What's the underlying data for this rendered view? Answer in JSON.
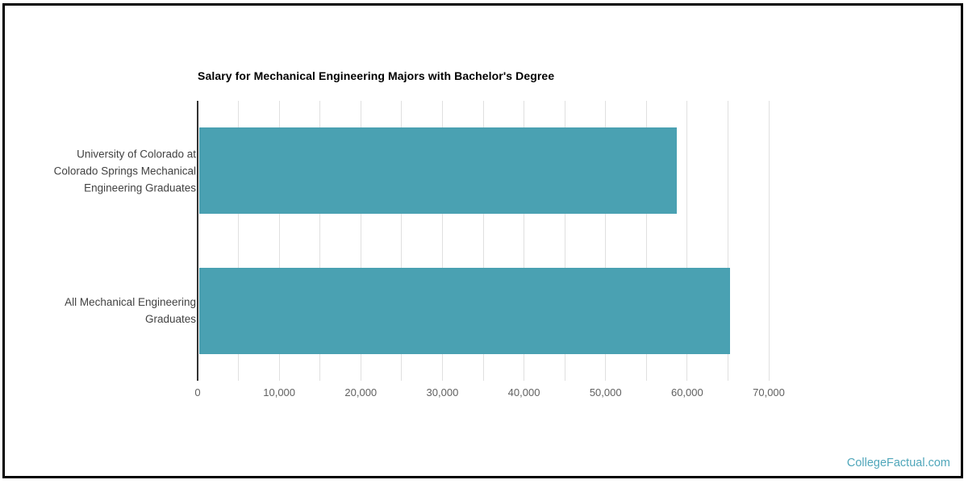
{
  "watermark": {
    "text": "CollegeFactual.com"
  },
  "chart_data": {
    "type": "bar",
    "orientation": "horizontal",
    "title": "Salary for Mechanical Engineering Majors with Bachelor's Degree",
    "categories": [
      "University of Colorado at Colorado Springs Mechanical Engineering Graduates",
      "All Mechanical Engineering Graduates"
    ],
    "category_lines": [
      [
        "University of Colorado at",
        "Colorado Springs Mechanical",
        "Engineering Graduates"
      ],
      [
        "All Mechanical Engineering",
        "Graduates"
      ]
    ],
    "values": [
      58500,
      65100
    ],
    "xlabel": "",
    "ylabel": "",
    "xlim": [
      0,
      70000
    ],
    "x_tick_values": [
      0,
      10000,
      20000,
      30000,
      40000,
      50000,
      60000,
      70000
    ],
    "x_tick_labels": [
      "0",
      "10,000",
      "20,000",
      "30,000",
      "40,000",
      "50,000",
      "60,000",
      "70,000"
    ],
    "gridline_step": 5000,
    "grid": true,
    "legend": "none",
    "colors": {
      "bar": "#4aa1b2",
      "gridline": "#e0e0e0",
      "axis_line": "#333333",
      "title_text": "#000000",
      "category_text": "#424242",
      "tick_text": "#616161",
      "watermark_text": "#4fa6ba",
      "border": "#000000"
    }
  }
}
